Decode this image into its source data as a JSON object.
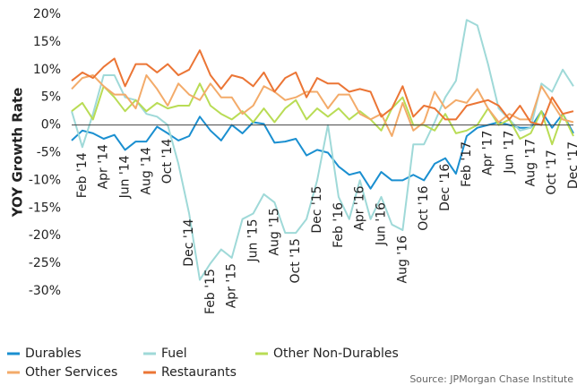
{
  "chart_data": {
    "type": "line",
    "y_label": "YOY Growth Rate",
    "source": "Source:  JPMorgan Chase Institute",
    "ylim": [
      -30,
      20
    ],
    "yticks": [
      {
        "value": -30,
        "label": "-30%"
      },
      {
        "value": -25,
        "label": "-25%"
      },
      {
        "value": -20,
        "label": "-20%"
      },
      {
        "value": -15,
        "label": "-15%"
      },
      {
        "value": -10,
        "label": "-10%"
      },
      {
        "value": -5,
        "label": "-5%"
      },
      {
        "value": 0,
        "label": "0%"
      },
      {
        "value": 5,
        "label": "5%"
      },
      {
        "value": 10,
        "label": "10%"
      },
      {
        "value": 15,
        "label": "15%"
      },
      {
        "value": 20,
        "label": "20%"
      }
    ],
    "grid": false,
    "categories": [
      null,
      "Feb '14",
      null,
      "Apr '14",
      null,
      "Jun '14",
      null,
      "Aug '14",
      null,
      "Oct '14",
      null,
      "Dec '14",
      null,
      "Feb '15",
      null,
      "Apr '15",
      null,
      "Jun '15",
      null,
      "Aug '15",
      null,
      "Oct '15",
      null,
      "Dec '15",
      null,
      "Feb '16",
      null,
      "Apr '16",
      null,
      "Jun '16",
      null,
      "Aug '16",
      null,
      "Oct '16",
      null,
      "Dec '16",
      null,
      "Feb '17",
      null,
      "Apr '17",
      null,
      "Jun '17",
      null,
      "Aug '17",
      null,
      "Oct '17",
      null,
      "Dec '17"
    ],
    "series": [
      {
        "name": "Durables",
        "color": "#1a8fd0",
        "values": [
          -2.8,
          -1,
          -1.5,
          -2.5,
          -1.8,
          -4.5,
          -3,
          -3,
          -0.3,
          -1.5,
          -2.8,
          -2,
          1.5,
          -1,
          -2.8,
          0,
          -1.5,
          0.5,
          0.2,
          -3.2,
          -3,
          -2.5,
          -5.5,
          -4.5,
          -5,
          -7.5,
          -9,
          -8.5,
          -11.5,
          -8.5,
          -10,
          -10,
          -9,
          -10,
          -7,
          -6,
          -8.8,
          -2,
          -0.5,
          0,
          0.5,
          0,
          -0.5,
          -0.5,
          2.5,
          -0.5,
          2,
          -1.5
        ]
      },
      {
        "name": "Fuel",
        "color": "#9fd9d8",
        "values": [
          2.5,
          -4,
          2,
          9,
          9,
          5,
          4.5,
          2,
          1.5,
          0,
          -7,
          -16,
          -28,
          -25,
          -22.5,
          -24,
          -17,
          -16,
          -12.5,
          -14,
          -19.5,
          -19.5,
          -17,
          -10,
          0,
          -13,
          -17,
          -10,
          -17,
          -13,
          -18,
          -19,
          -3.5,
          -3.5,
          0.5,
          5,
          8,
          19,
          18,
          11,
          3,
          1,
          -1,
          -0.5,
          7.5,
          6,
          10,
          7
        ]
      },
      {
        "name": "Other Non-Durables",
        "color": "#b9dc55",
        "values": [
          2.5,
          4,
          1,
          7,
          5,
          2.5,
          4.5,
          2.5,
          4,
          3,
          3.5,
          3.5,
          7.5,
          3.5,
          2,
          1,
          2.5,
          0.5,
          3,
          0.5,
          3,
          4.5,
          1,
          3,
          1.5,
          3,
          1,
          2.5,
          1,
          -1,
          3,
          5,
          0,
          0,
          -1,
          2,
          -1.5,
          -1,
          0,
          3,
          0,
          1,
          -2.5,
          -1.5,
          2.5,
          -3.5,
          2,
          -2
        ]
      },
      {
        "name": "Other Services",
        "color": "#f3ab6a",
        "values": [
          6.5,
          8.5,
          9,
          7,
          5.5,
          5.5,
          3,
          9,
          6.5,
          3.5,
          7.5,
          5.5,
          4.5,
          7.5,
          5,
          5,
          2,
          3.5,
          7,
          6,
          4.5,
          5,
          6,
          6,
          3,
          5.5,
          5.5,
          2,
          1,
          2,
          -2,
          4,
          -1,
          0.5,
          6,
          3,
          4.5,
          4,
          6.5,
          3,
          0.5,
          2,
          1,
          1,
          7,
          4,
          1,
          0.5
        ]
      },
      {
        "name": "Restaurants",
        "color": "#eb7535",
        "values": [
          8,
          9.5,
          8.5,
          10.5,
          12,
          7,
          11,
          11,
          9.5,
          11,
          9,
          10,
          13.5,
          9,
          6.5,
          9,
          8.5,
          7,
          9.5,
          6,
          8.5,
          9.5,
          5,
          8.5,
          7.5,
          7.5,
          6,
          6.5,
          6,
          1.5,
          3,
          7,
          1.5,
          3.5,
          3,
          1,
          1,
          3.5,
          4,
          4.5,
          3.5,
          1,
          3.5,
          0.5,
          0,
          5,
          2,
          2.5
        ]
      }
    ]
  }
}
